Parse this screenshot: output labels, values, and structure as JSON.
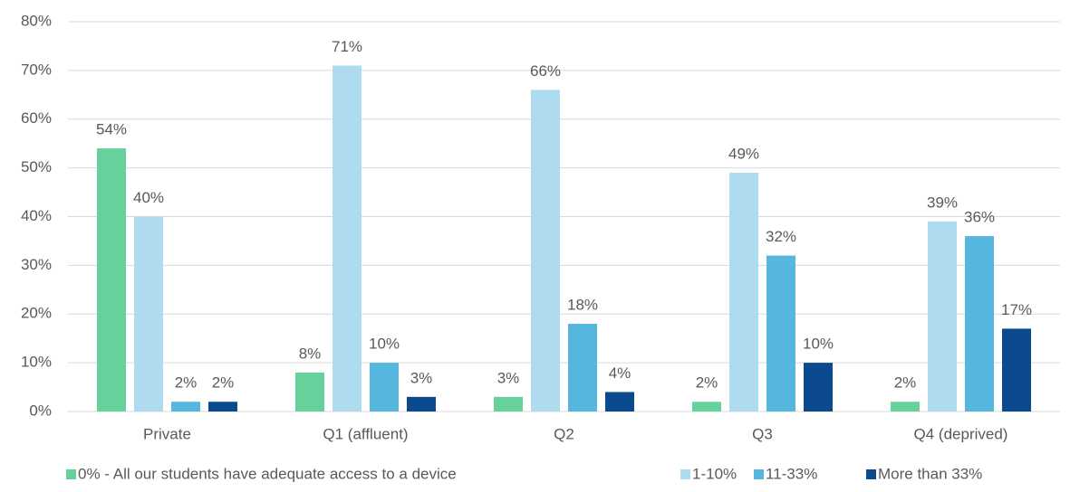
{
  "chart_data": {
    "type": "bar",
    "categories": [
      "Private",
      "Q1 (affluent)",
      "Q2",
      "Q3",
      "Q4 (deprived)"
    ],
    "series": [
      {
        "name": "0% - All our students have adequate access to a device",
        "color": "#66d19b",
        "values": [
          54,
          8,
          3,
          2,
          2
        ],
        "value_labels": [
          "54%",
          "8%",
          "3%",
          "2%",
          "2%"
        ]
      },
      {
        "name": "1-10%",
        "color": "#aedbf0",
        "values": [
          40,
          71,
          66,
          49,
          39
        ],
        "value_labels": [
          "40%",
          "71%",
          "66%",
          "49%",
          "39%"
        ]
      },
      {
        "name": "11-33%",
        "color": "#56b7de",
        "values": [
          2,
          10,
          18,
          32,
          36
        ],
        "value_labels": [
          "2%",
          "10%",
          "18%",
          "32%",
          "36%"
        ]
      },
      {
        "name": "More than 33%",
        "color": "#0b4a8f",
        "values": [
          2,
          3,
          4,
          10,
          17
        ],
        "value_labels": [
          "2%",
          "3%",
          "4%",
          "10%",
          "17%"
        ]
      }
    ],
    "ylim": [
      0,
      80
    ],
    "yticks": [
      {
        "value": 0,
        "label": "0%"
      },
      {
        "value": 10,
        "label": "10%"
      },
      {
        "value": 20,
        "label": "20%"
      },
      {
        "value": 30,
        "label": "30%"
      },
      {
        "value": 40,
        "label": "40%"
      },
      {
        "value": 50,
        "label": "50%"
      },
      {
        "value": 60,
        "label": "60%"
      },
      {
        "value": 70,
        "label": "70%"
      },
      {
        "value": 80,
        "label": "80%"
      }
    ],
    "grid": true,
    "legend": "bottom"
  }
}
